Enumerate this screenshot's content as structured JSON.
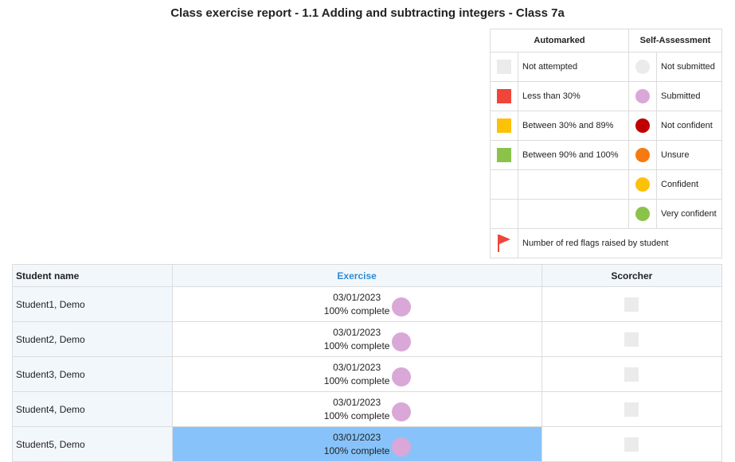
{
  "title": "Class exercise report - 1.1 Adding and subtracting integers - Class 7a",
  "legend": {
    "automarked_header": "Automarked",
    "self_header": "Self-Assessment",
    "auto": [
      {
        "label": "Not attempted",
        "color": "#ebebeb"
      },
      {
        "label": "Less than 30%",
        "color": "#f0453a"
      },
      {
        "label": "Between 30% and 89%",
        "color": "#fdc107"
      },
      {
        "label": "Between 90% and 100%",
        "color": "#8bc34a"
      }
    ],
    "self": [
      {
        "label": "Not submitted",
        "color": "#ebebeb"
      },
      {
        "label": "Submitted",
        "color": "#d9a8d8"
      },
      {
        "label": "Not confident",
        "color": "#c00000"
      },
      {
        "label": "Unsure",
        "color": "#f67a0f"
      },
      {
        "label": "Confident",
        "color": "#fdc107"
      },
      {
        "label": "Very confident",
        "color": "#8bc34a"
      }
    ],
    "flag_label": "Number of red flags raised by student",
    "flag_color": "#f0453a"
  },
  "table": {
    "headers": {
      "name": "Student name",
      "exercise": "Exercise",
      "scorcher": "Scorcher"
    },
    "rows": [
      {
        "name": "Student1, Demo",
        "date": "03/01/2023",
        "complete": "100% complete"
      },
      {
        "name": "Student2, Demo",
        "date": "03/01/2023",
        "complete": "100% complete"
      },
      {
        "name": "Student3, Demo",
        "date": "03/01/2023",
        "complete": "100% complete"
      },
      {
        "name": "Student4, Demo",
        "date": "03/01/2023",
        "complete": "100% complete"
      },
      {
        "name": "Student5, Demo",
        "date": "03/01/2023",
        "complete": "100% complete"
      }
    ],
    "selected_row": 5
  }
}
